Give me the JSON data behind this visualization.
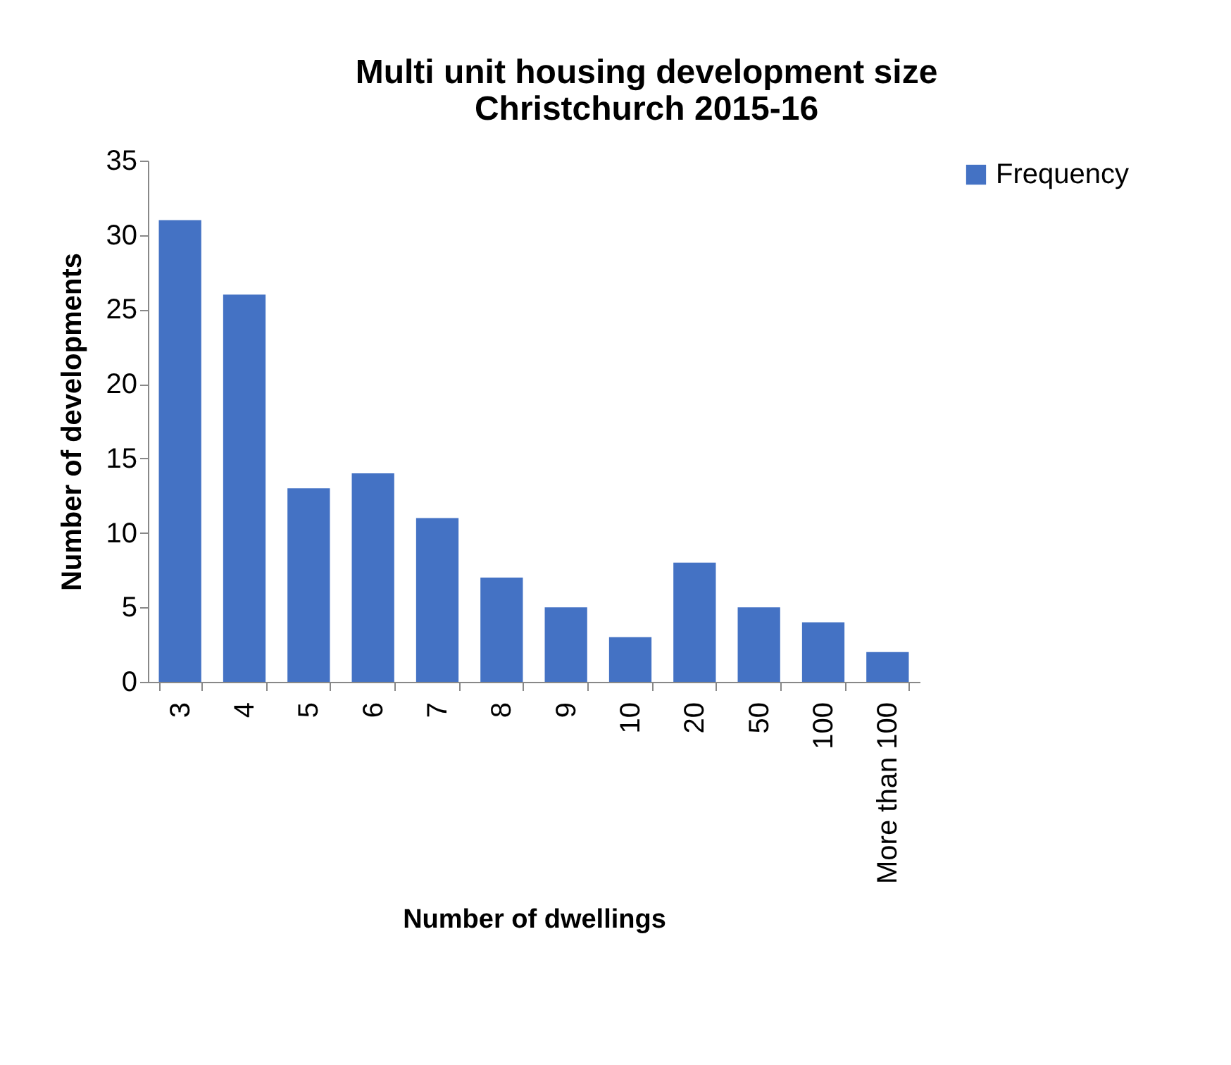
{
  "chart_data": {
    "type": "bar",
    "title": "Multi unit housing development size\nChristchurch 2015-16",
    "xlabel": "Number of dwellings",
    "ylabel": "Number of developments",
    "categories": [
      "3",
      "4",
      "5",
      "6",
      "7",
      "8",
      "9",
      "10",
      "20",
      "50",
      "100",
      "More than 100"
    ],
    "series": [
      {
        "name": "Frequency",
        "color": "#4472c4",
        "values": [
          31,
          26,
          13,
          14,
          11,
          7,
          5,
          3,
          8,
          5,
          4,
          2
        ]
      }
    ],
    "ylim": [
      0,
      35
    ],
    "yticks": [
      0,
      5,
      10,
      15,
      20,
      25,
      30,
      35
    ],
    "grid": false,
    "legend": "right"
  }
}
